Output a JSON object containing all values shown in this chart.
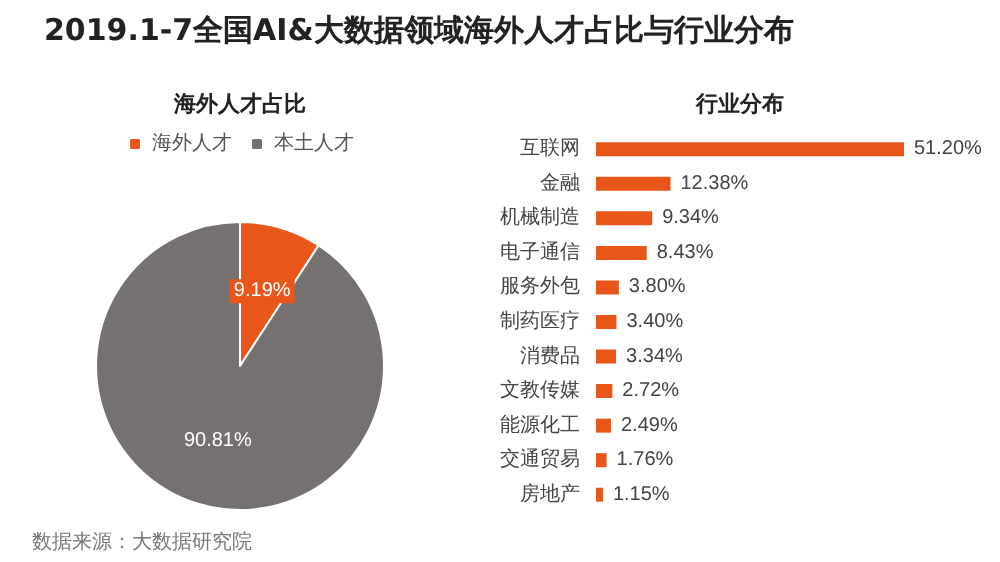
{
  "chart_data": [
    {
      "type": "pie",
      "title": "海外人才占比",
      "categories": [
        "海外人才",
        "本土人才"
      ],
      "values": [
        9.19,
        90.81
      ],
      "colors": [
        "#e8561a",
        "#767171"
      ],
      "value_labels": [
        "9.19%",
        "90.81%"
      ],
      "legend": "top",
      "annotations": [
        "2019.1-7全国AI&大数据领域海外人才占比与行业分布",
        "数据来源：大数据研究院"
      ]
    },
    {
      "type": "bar",
      "orientation": "horizontal",
      "title": "行业分布",
      "categories": [
        "互联网",
        "金融",
        "机械制造",
        "电子通信",
        "服务外包",
        "制药医疗",
        "消费品",
        "文教传媒",
        "能源化工",
        "交通贸易",
        "房地产"
      ],
      "values": [
        51.2,
        12.38,
        9.34,
        8.43,
        3.8,
        3.4,
        3.34,
        2.72,
        2.49,
        1.76,
        1.15
      ],
      "color": "#e8561a",
      "value_labels": [
        "51.20%",
        "12.38%",
        "9.34%",
        "8.43%",
        "3.80%",
        "3.40%",
        "3.34%",
        "2.72%",
        "2.49%",
        "1.76%",
        "1.15%"
      ]
    }
  ]
}
